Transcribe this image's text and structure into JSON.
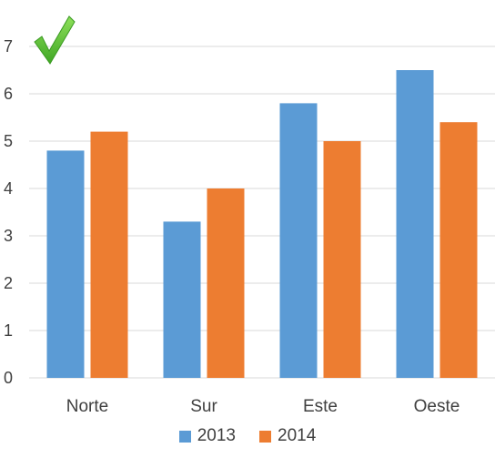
{
  "chart_data": {
    "type": "bar",
    "categories": [
      "Norte",
      "Sur",
      "Este",
      "Oeste"
    ],
    "series": [
      {
        "name": "2013",
        "values": [
          4.8,
          3.3,
          5.8,
          6.5
        ],
        "color": "#5B9BD5"
      },
      {
        "name": "2014",
        "values": [
          5.2,
          4.0,
          5.0,
          5.4
        ],
        "color": "#ED7D31"
      }
    ],
    "ylim": [
      0,
      7
    ],
    "yticks": [
      0,
      1,
      2,
      3,
      4,
      5,
      6,
      7
    ],
    "grid": true,
    "legend_position": "bottom",
    "title": "",
    "xlabel": "",
    "ylabel": ""
  },
  "decoration": {
    "icon": "green-checkmark-icon",
    "color": "#6CC644"
  }
}
